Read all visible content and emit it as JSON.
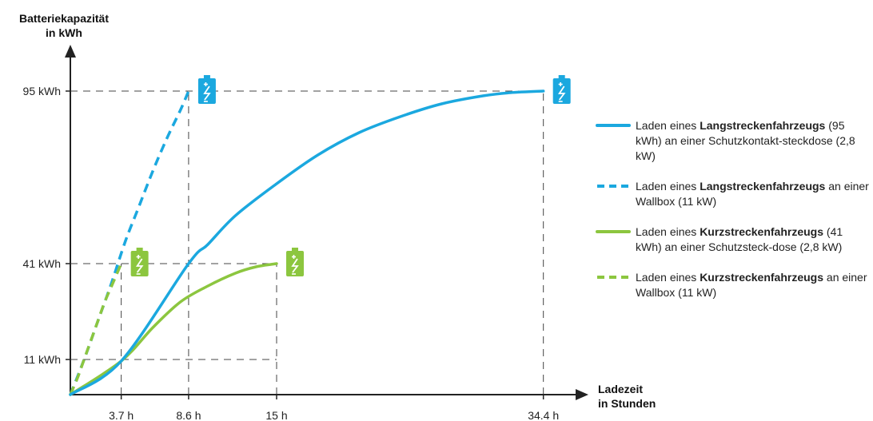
{
  "chart_data": {
    "type": "line",
    "ylabel": [
      "Batteriekapazität",
      "in kWh"
    ],
    "xlabel": [
      "Ladezeit",
      "in Stunden"
    ],
    "x_ticks": [
      {
        "value": 3.7,
        "label": "3.7 h"
      },
      {
        "value": 8.6,
        "label": "8.6 h"
      },
      {
        "value": 15,
        "label": "15 h"
      },
      {
        "value": 34.4,
        "label": "34.4 h"
      }
    ],
    "y_ticks": [
      {
        "value": 11,
        "label": "11 kWh"
      },
      {
        "value": 41,
        "label": "41 kWh"
      },
      {
        "value": 95,
        "label": "95 kWh"
      }
    ],
    "colors": {
      "long_range": "#1ba8df",
      "short_range": "#8cc63f",
      "axis": "#222222",
      "guide": "#444444"
    },
    "series": [
      {
        "id": "long-socket",
        "color": "#1ba8df",
        "style": "solid",
        "legend": [
          "Laden eines ",
          "Langstreckenfahrzeugs",
          " (95 kWh) an einer Schutzkontakt-steckdose (2,8 kW)"
        ],
        "points": [
          [
            0,
            0
          ],
          [
            3.7,
            10.5
          ],
          [
            8.6,
            41
          ],
          [
            10,
            47
          ],
          [
            12,
            56
          ],
          [
            15,
            66
          ],
          [
            18,
            75
          ],
          [
            21,
            82
          ],
          [
            24,
            87
          ],
          [
            27,
            91
          ],
          [
            30,
            93.5
          ],
          [
            32,
            94.5
          ],
          [
            34.4,
            95
          ]
        ]
      },
      {
        "id": "long-wallbox",
        "color": "#1ba8df",
        "style": "dashed",
        "legend": [
          "Laden eines ",
          "Langstreckenfahrzeugs",
          " an einer Wallbox (11 kW)"
        ],
        "points": [
          [
            0,
            0
          ],
          [
            1,
            11
          ],
          [
            2,
            23
          ],
          [
            3,
            35
          ],
          [
            4,
            48
          ],
          [
            5,
            59
          ],
          [
            6,
            70
          ],
          [
            7,
            80
          ],
          [
            8,
            89
          ],
          [
            8.6,
            95
          ]
        ]
      },
      {
        "id": "short-socket",
        "color": "#8cc63f",
        "style": "solid",
        "legend": [
          "Laden eines ",
          "Kurzstreckenfahrzeugs",
          " (41 kWh) an einer Schutzsteck-dose (2,8 kW)"
        ],
        "points": [
          [
            0,
            0
          ],
          [
            3.7,
            10.5
          ],
          [
            6,
            21
          ],
          [
            8,
            29
          ],
          [
            10,
            34
          ],
          [
            12,
            38
          ],
          [
            13.5,
            40
          ],
          [
            15,
            41
          ]
        ]
      },
      {
        "id": "short-wallbox",
        "color": "#8cc63f",
        "style": "dashed",
        "legend": [
          "Laden eines ",
          "Kurzstreckenfahrzeugs",
          " an einer Wallbox (11 kW)"
        ],
        "points": [
          [
            0,
            0
          ],
          [
            0.5,
            5
          ],
          [
            1,
            11
          ],
          [
            1.5,
            17
          ],
          [
            2,
            23
          ],
          [
            2.5,
            29
          ],
          [
            3,
            34
          ],
          [
            3.4,
            38
          ],
          [
            3.7,
            41
          ]
        ]
      }
    ],
    "end_markers": [
      {
        "x": 8.6,
        "y": 95,
        "color": "#1ba8df",
        "icon": "battery-charging-icon"
      },
      {
        "x": 34.4,
        "y": 95,
        "color": "#1ba8df",
        "icon": "battery-charging-icon"
      },
      {
        "x": 3.7,
        "y": 41,
        "color": "#8cc63f",
        "icon": "battery-charging-icon"
      },
      {
        "x": 15,
        "y": 41,
        "color": "#8cc63f",
        "icon": "battery-charging-icon"
      }
    ]
  }
}
